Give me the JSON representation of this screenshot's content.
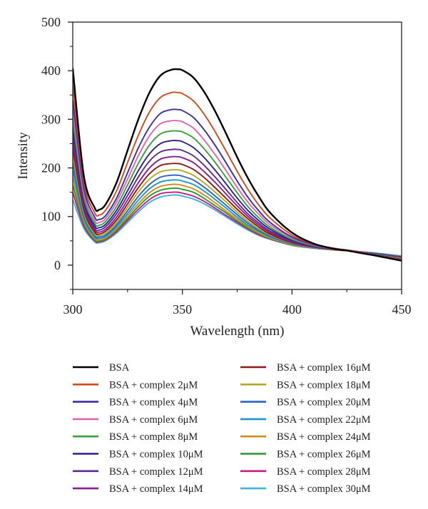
{
  "chart_data": {
    "type": "line",
    "xlabel": "Wavelength (nm)",
    "ylabel": "Intensity",
    "xlim": [
      300,
      450
    ],
    "ylim": [
      -50,
      500
    ],
    "xticks": [
      300,
      350,
      400,
      450
    ],
    "yticks": [
      0,
      100,
      200,
      300,
      400,
      500
    ],
    "grid": false,
    "legend_position": "bottom",
    "x": [
      300,
      305,
      310,
      312,
      315,
      320,
      325,
      330,
      335,
      340,
      345,
      348,
      350,
      355,
      360,
      365,
      370,
      375,
      380,
      385,
      390,
      400,
      410,
      420,
      425,
      430,
      440,
      450
    ],
    "series": [
      {
        "name": "BSA",
        "color": "#000000",
        "values": [
          405,
          185,
          118,
          114,
          125,
          170,
          236,
          301,
          355,
          390,
          402,
          403,
          401,
          386,
          356,
          316,
          270,
          222,
          178,
          140,
          108,
          67,
          44,
          33,
          30,
          26,
          18,
          9
        ]
      },
      {
        "name": "BSA + complex 2μM",
        "color": "#d24a1c",
        "values": [
          370,
          172,
          108,
          103,
          113,
          153,
          211,
          268,
          315,
          345,
          355,
          355,
          353,
          338,
          310,
          274,
          234,
          193,
          155,
          123,
          97,
          62,
          43,
          34,
          31,
          27,
          19,
          11
        ]
      },
      {
        "name": "BSA + complex 4μM",
        "color": "#3d2ea0",
        "values": [
          340,
          160,
          99,
          94,
          102,
          138,
          190,
          242,
          284,
          312,
          320,
          320,
          318,
          304,
          278,
          246,
          210,
          173,
          139,
          111,
          88,
          58,
          42,
          34,
          31,
          27,
          20,
          12
        ]
      },
      {
        "name": "BSA + complex 6μM",
        "color": "#dc64b4",
        "values": [
          320,
          150,
          92,
          88,
          96,
          130,
          177,
          226,
          266,
          291,
          297,
          297,
          295,
          282,
          257,
          227,
          194,
          160,
          129,
          104,
          83,
          56,
          41,
          34,
          31,
          28,
          20,
          13
        ]
      },
      {
        "name": "BSA + complex 8μM",
        "color": "#3aa03a",
        "values": [
          300,
          141,
          86,
          82,
          90,
          121,
          165,
          210,
          247,
          270,
          276,
          276,
          274,
          262,
          239,
          211,
          180,
          149,
          120,
          97,
          78,
          53,
          40,
          33,
          31,
          28,
          21,
          14
        ]
      },
      {
        "name": "BSA + complex 10μM",
        "color": "#2a208a",
        "values": [
          285,
          134,
          81,
          77,
          84,
          113,
          153,
          195,
          229,
          250,
          256,
          256,
          254,
          242,
          221,
          195,
          167,
          138,
          112,
          91,
          74,
          51,
          39,
          33,
          31,
          28,
          21,
          14
        ]
      },
      {
        "name": "BSA + complex 12μM",
        "color": "#5e2a8c",
        "values": [
          270,
          127,
          76,
          72,
          79,
          106,
          143,
          182,
          214,
          233,
          238,
          238,
          236,
          225,
          205,
          181,
          155,
          129,
          105,
          86,
          70,
          49,
          38,
          33,
          31,
          28,
          22,
          15
        ]
      },
      {
        "name": "BSA + complex 14μM",
        "color": "#8c1e8c",
        "values": [
          255,
          120,
          72,
          68,
          74,
          99,
          134,
          170,
          200,
          218,
          223,
          223,
          221,
          211,
          192,
          170,
          146,
          122,
          100,
          82,
          67,
          47,
          37,
          32,
          30,
          28,
          22,
          15
        ]
      },
      {
        "name": "BSA + complex 16μM",
        "color": "#8c1a1a",
        "values": [
          240,
          114,
          68,
          64,
          70,
          93,
          126,
          160,
          188,
          205,
          209,
          209,
          207,
          197,
          180,
          159,
          137,
          115,
          95,
          78,
          64,
          46,
          37,
          32,
          30,
          28,
          22,
          16
        ]
      },
      {
        "name": "BSA + complex 18μM",
        "color": "#b4aa1e",
        "values": [
          225,
          108,
          64,
          61,
          66,
          88,
          119,
          151,
          177,
          192,
          196,
          196,
          194,
          185,
          169,
          150,
          130,
          109,
          90,
          74,
          62,
          45,
          36,
          32,
          30,
          28,
          22,
          16
        ]
      },
      {
        "name": "BSA + complex 20μM",
        "color": "#2a64c8",
        "values": [
          210,
          102,
          61,
          58,
          62,
          83,
          112,
          142,
          166,
          181,
          185,
          185,
          183,
          175,
          160,
          142,
          123,
          104,
          86,
          71,
          60,
          44,
          36,
          32,
          30,
          28,
          23,
          17
        ]
      },
      {
        "name": "BSA + complex 22μM",
        "color": "#1e96c8",
        "values": [
          195,
          96,
          58,
          55,
          59,
          79,
          106,
          134,
          157,
          171,
          175,
          175,
          173,
          166,
          152,
          135,
          117,
          99,
          82,
          69,
          58,
          43,
          35,
          32,
          30,
          28,
          23,
          17
        ]
      },
      {
        "name": "BSA + complex 24μM",
        "color": "#d28c1e",
        "values": [
          180,
          91,
          55,
          52,
          56,
          75,
          101,
          127,
          149,
          162,
          166,
          166,
          164,
          157,
          144,
          128,
          111,
          95,
          79,
          66,
          56,
          42,
          35,
          31,
          30,
          28,
          23,
          18
        ]
      },
      {
        "name": "BSA + complex 26μM",
        "color": "#2a962a",
        "values": [
          165,
          86,
          52,
          50,
          54,
          72,
          96,
          121,
          142,
          154,
          158,
          158,
          156,
          150,
          137,
          122,
          107,
          91,
          76,
          64,
          55,
          41,
          35,
          31,
          30,
          28,
          23,
          18
        ]
      },
      {
        "name": "BSA + complex 28μM",
        "color": "#c81e82",
        "values": [
          150,
          81,
          50,
          48,
          52,
          69,
          92,
          115,
          135,
          147,
          150,
          150,
          148,
          142,
          131,
          117,
          102,
          88,
          74,
          62,
          54,
          41,
          35,
          31,
          30,
          28,
          23,
          18
        ]
      },
      {
        "name": "BSA + complex 30μM",
        "color": "#3cb4dc",
        "values": [
          135,
          76,
          48,
          46,
          50,
          66,
          88,
          110,
          129,
          140,
          144,
          144,
          142,
          136,
          126,
          113,
          99,
          85,
          72,
          61,
          53,
          41,
          35,
          31,
          30,
          28,
          24,
          19
        ]
      }
    ]
  }
}
